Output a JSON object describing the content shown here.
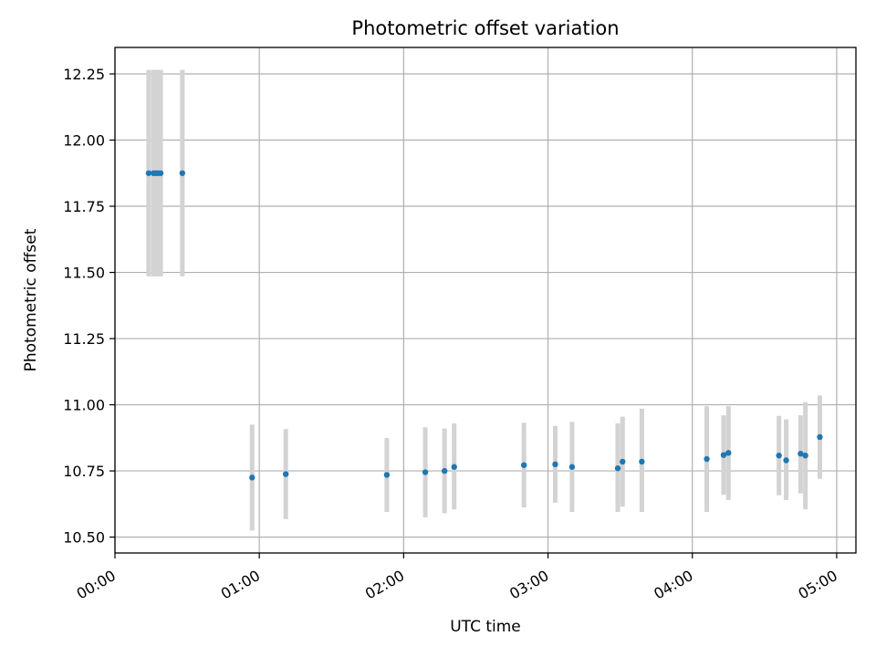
{
  "chart_data": {
    "type": "scatter",
    "title": "Photometric offset variation",
    "xlabel": "UTC time",
    "ylabel": "Photometric offset",
    "x_unit": "UTC hh:mm",
    "xlim": [
      "00:00",
      "05:08"
    ],
    "ylim": [
      10.44,
      12.35
    ],
    "grid": true,
    "x_ticks": [
      "00:00",
      "01:00",
      "02:00",
      "03:00",
      "04:00",
      "05:00"
    ],
    "y_ticks": [
      "10.50",
      "10.75",
      "11.00",
      "11.25",
      "11.50",
      "11.75",
      "12.00",
      "12.25"
    ],
    "marker_color": "#1f77b4",
    "errorbar_color": "#d3d3d3",
    "points": [
      {
        "x": "00:14",
        "y": 11.875,
        "ylow": 11.485,
        "yhigh": 12.265
      },
      {
        "x": "00:16",
        "y": 11.875,
        "ylow": 11.485,
        "yhigh": 12.265
      },
      {
        "x": "00:17",
        "y": 11.875,
        "ylow": 11.485,
        "yhigh": 12.265
      },
      {
        "x": "00:18",
        "y": 11.875,
        "ylow": 11.485,
        "yhigh": 12.265
      },
      {
        "x": "00:19",
        "y": 11.875,
        "ylow": 11.485,
        "yhigh": 12.265
      },
      {
        "x": "00:28",
        "y": 11.875,
        "ylow": 11.485,
        "yhigh": 12.265
      },
      {
        "x": "00:57",
        "y": 10.725,
        "ylow": 10.525,
        "yhigh": 10.925
      },
      {
        "x": "01:11",
        "y": 10.738,
        "ylow": 10.568,
        "yhigh": 10.908
      },
      {
        "x": "01:53",
        "y": 10.735,
        "ylow": 10.595,
        "yhigh": 10.875
      },
      {
        "x": "02:09",
        "y": 10.745,
        "ylow": 10.575,
        "yhigh": 10.915
      },
      {
        "x": "02:17",
        "y": 10.75,
        "ylow": 10.59,
        "yhigh": 10.91
      },
      {
        "x": "02:21",
        "y": 10.765,
        "ylow": 10.605,
        "yhigh": 10.93
      },
      {
        "x": "02:50",
        "y": 10.772,
        "ylow": 10.612,
        "yhigh": 10.932
      },
      {
        "x": "03:03",
        "y": 10.775,
        "ylow": 10.63,
        "yhigh": 10.92
      },
      {
        "x": "03:10",
        "y": 10.765,
        "ylow": 10.595,
        "yhigh": 10.935
      },
      {
        "x": "03:29",
        "y": 10.76,
        "ylow": 10.595,
        "yhigh": 10.93
      },
      {
        "x": "03:31",
        "y": 10.785,
        "ylow": 10.615,
        "yhigh": 10.955
      },
      {
        "x": "03:39",
        "y": 10.785,
        "ylow": 10.595,
        "yhigh": 10.985
      },
      {
        "x": "04:06",
        "y": 10.795,
        "ylow": 10.595,
        "yhigh": 10.995
      },
      {
        "x": "04:13",
        "y": 10.81,
        "ylow": 10.66,
        "yhigh": 10.96
      },
      {
        "x": "04:15",
        "y": 10.818,
        "ylow": 10.64,
        "yhigh": 10.995
      },
      {
        "x": "04:36",
        "y": 10.808,
        "ylow": 10.658,
        "yhigh": 10.958
      },
      {
        "x": "04:39",
        "y": 10.79,
        "ylow": 10.64,
        "yhigh": 10.945
      },
      {
        "x": "04:45",
        "y": 10.815,
        "ylow": 10.665,
        "yhigh": 10.96
      },
      {
        "x": "04:47",
        "y": 10.808,
        "ylow": 10.605,
        "yhigh": 11.01
      },
      {
        "x": "04:53",
        "y": 10.878,
        "ylow": 10.72,
        "yhigh": 11.035
      }
    ]
  }
}
